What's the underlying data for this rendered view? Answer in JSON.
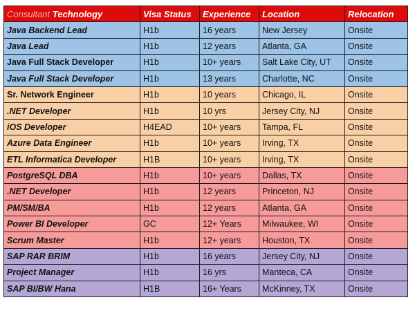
{
  "header": {
    "consultant_word": "Consultant",
    "technology_word": "Technology",
    "visa": "Visa Status",
    "experience": "Experience",
    "location": "Location",
    "relocation": "Relocation"
  },
  "colors": {
    "header": "#dd0c0c",
    "blue": "#9dc3e6",
    "orange": "#f9cfa5",
    "red": "#f79a9a",
    "purple": "#b4a7d6"
  },
  "rows": [
    {
      "tech": "Java Backend Lead",
      "visa": "H1b",
      "exp": "16 years",
      "loc": "New Jersey",
      "reloc": "Onsite",
      "group": "blue",
      "italic": true
    },
    {
      "tech": "Java Lead",
      "visa": "H1b",
      "exp": "12 years",
      "loc": "Atlanta, GA",
      "reloc": "Onsite",
      "group": "blue",
      "italic": true
    },
    {
      "tech": "Java Full Stack Developer",
      "visa": "H1b",
      "exp": "10+ years",
      "loc": "Salt Lake City, UT",
      "reloc": "Onsite",
      "group": "blue",
      "italic": false
    },
    {
      "tech": "Java Full Stack Developer",
      "visa": "H1b",
      "exp": "13 years",
      "loc": "Charlotte, NC",
      "reloc": "Onsite",
      "group": "blue",
      "italic": true
    },
    {
      "tech": "Sr. Network Engineer",
      "visa": "H1b",
      "exp": "10 years",
      "loc": "Chicago, IL",
      "reloc": "Onsite",
      "group": "orange",
      "italic": false
    },
    {
      "tech": ".NET Developer",
      "visa": "H1b",
      "exp": "10 yrs",
      "loc": "Jersey City, NJ",
      "reloc": "Onsite",
      "group": "orange",
      "italic": true
    },
    {
      "tech": "iOS Developer",
      "visa": "H4EAD",
      "exp": "10+ years",
      "loc": "Tampa, FL",
      "reloc": "Onsite",
      "group": "orange",
      "italic": true
    },
    {
      "tech": "Azure Data Engineer",
      "visa": "H1b",
      "exp": "10+ years",
      "loc": "Irving, TX",
      "reloc": "Onsite",
      "group": "orange",
      "italic": true
    },
    {
      "tech": "ETL Informatica Developer",
      "visa": "H1B",
      "exp": "10+ years",
      "loc": "Irving, TX",
      "reloc": "Onsite",
      "group": "orange",
      "italic": true
    },
    {
      "tech": "PostgreSQL DBA",
      "visa": "H1b",
      "exp": "10+ years",
      "loc": "Dallas, TX",
      "reloc": "Onsite",
      "group": "red",
      "italic": true
    },
    {
      "tech": ".NET Developer",
      "visa": "H1b",
      "exp": "12 years",
      "loc": "Princeton, NJ",
      "reloc": "Onsite",
      "group": "red",
      "italic": true
    },
    {
      "tech": "PM/SM/BA",
      "visa": "H1b",
      "exp": "12 years",
      "loc": "Atlanta, GA",
      "reloc": "Onsite",
      "group": "red",
      "italic": true
    },
    {
      "tech": "Power BI Developer",
      "visa": "GC",
      "exp": "12+ Years",
      "loc": "Milwaukee, WI",
      "reloc": "Onsite",
      "group": "red",
      "italic": true
    },
    {
      "tech": "Scrum Master",
      "visa": "H1b",
      "exp": "12+ years",
      "loc": "Houston, TX",
      "reloc": "Onsite",
      "group": "red",
      "italic": true
    },
    {
      "tech": "SAP RAR BRIM",
      "visa": "H1b",
      "exp": "16 years",
      "loc": "Jersey City, NJ",
      "reloc": "Onsite",
      "group": "purple",
      "italic": true
    },
    {
      "tech": "Project Manager",
      "visa": "H1b",
      "exp": "16 yrs",
      "loc": "Manteca, CA",
      "reloc": "Onsite",
      "group": "purple",
      "italic": true
    },
    {
      "tech": "SAP BI/BW Hana",
      "visa": "H1B",
      "exp": "16+ Years",
      "loc": "McKinney, TX",
      "reloc": "Onsite",
      "group": "purple",
      "italic": true
    }
  ]
}
